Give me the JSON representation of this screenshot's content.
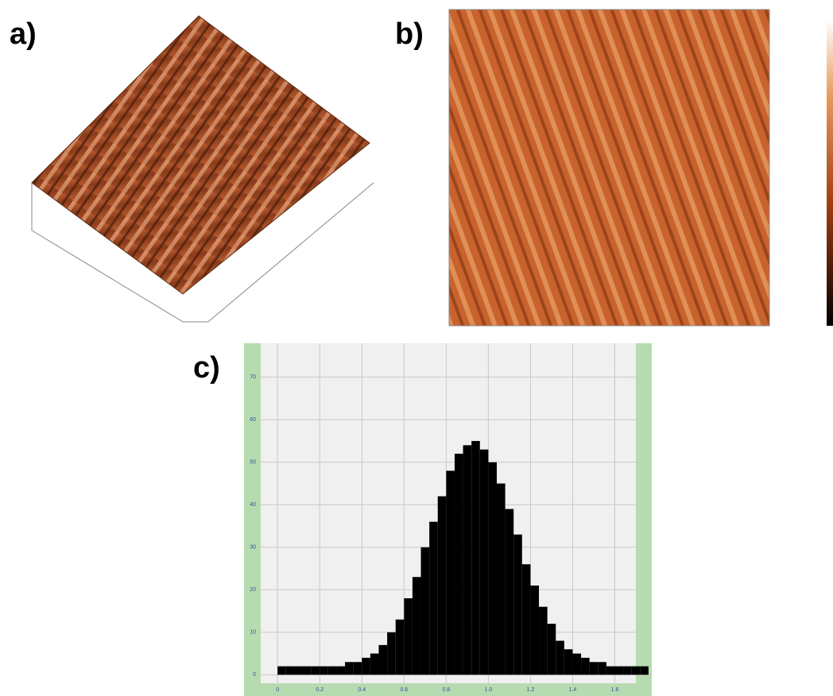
{
  "panels": {
    "a": "a)",
    "b": "b)",
    "c": "c)"
  },
  "chart_data": {
    "type": "histogram",
    "bins": [
      0,
      0.04,
      0.08,
      0.12,
      0.16,
      0.2,
      0.24,
      0.28,
      0.32,
      0.36,
      0.4,
      0.44,
      0.48,
      0.52,
      0.56,
      0.6,
      0.64,
      0.68,
      0.72,
      0.76,
      0.8,
      0.84,
      0.88,
      0.92,
      0.96,
      1,
      1.04,
      1.08,
      1.12,
      1.16,
      1.2,
      1.24,
      1.28,
      1.32,
      1.36,
      1.4,
      1.44,
      1.48,
      1.52,
      1.56,
      1.6,
      1.64,
      1.68,
      1.72,
      1.76
    ],
    "values": [
      2,
      2,
      2,
      2,
      2,
      2,
      2,
      2,
      3,
      3,
      4,
      5,
      7,
      10,
      13,
      18,
      23,
      30,
      36,
      42,
      48,
      52,
      54,
      55,
      53,
      50,
      45,
      39,
      33,
      26,
      21,
      16,
      12,
      8,
      6,
      5,
      4,
      3,
      3,
      2,
      2,
      2,
      2,
      2
    ],
    "color": "#000000",
    "xlim": [
      -0.08,
      1.7
    ],
    "ylim": [
      -2,
      78
    ],
    "xticks": [
      0,
      0.2,
      0.4,
      0.6,
      0.8,
      {
        "value": 1,
        "label": "1.0"
      },
      1.2,
      1.4,
      1.6
    ],
    "yticks": [
      0,
      10,
      20,
      30,
      40,
      50,
      60,
      70
    ],
    "grid": true
  }
}
